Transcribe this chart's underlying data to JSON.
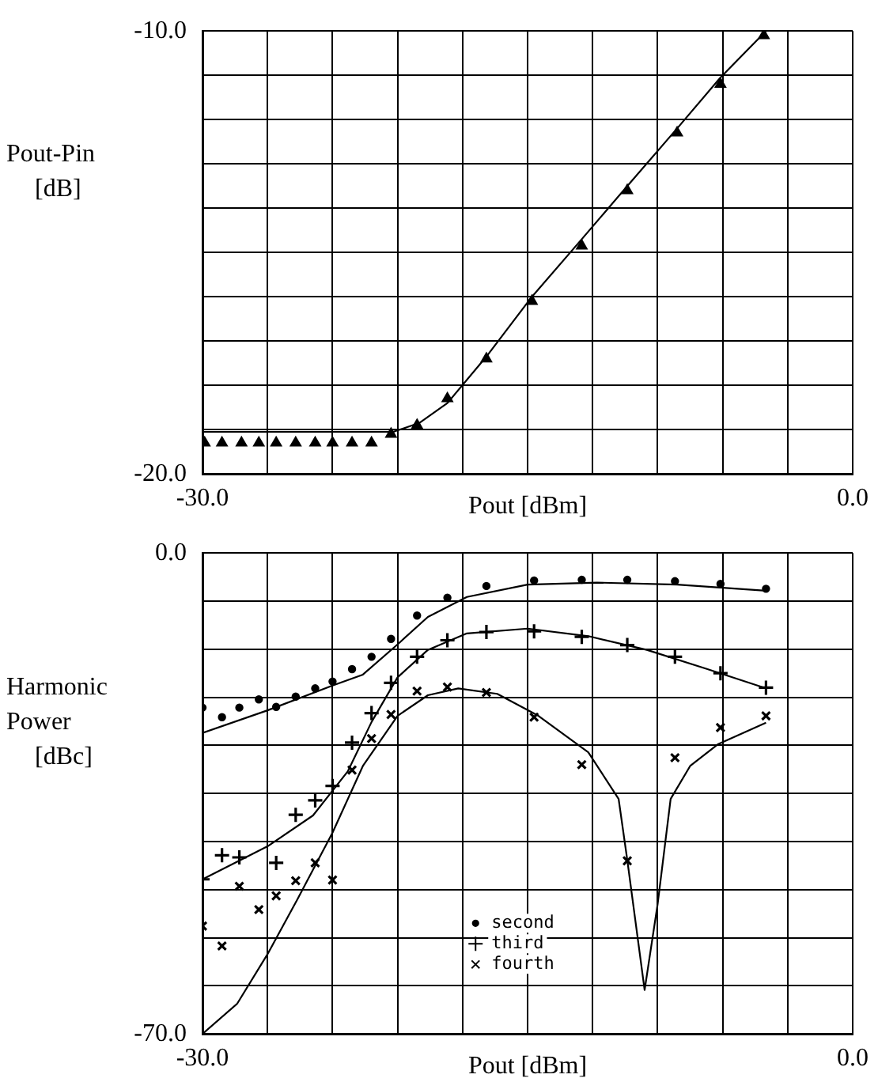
{
  "chart_data": [
    {
      "type": "scatter",
      "ylabel": "Pout-Pin [dB]",
      "xlabel": "Pout [dBm]",
      "xlim": [
        -30,
        0
      ],
      "ylim": [
        -20,
        -10
      ],
      "grid": true,
      "legend": false,
      "xticks": [
        {
          "value": -30,
          "label": "-30.0"
        },
        {
          "value": -27,
          "label": null
        },
        {
          "value": -24,
          "label": null
        },
        {
          "value": -21,
          "label": null
        },
        {
          "value": -18,
          "label": null
        },
        {
          "value": -15,
          "label": null
        },
        {
          "value": -12,
          "label": null
        },
        {
          "value": -9,
          "label": null
        },
        {
          "value": -6,
          "label": null
        },
        {
          "value": -3,
          "label": null
        },
        {
          "value": 0,
          "label": "0.0"
        }
      ],
      "yticks": [
        {
          "value": -20,
          "label": "-20.0"
        },
        {
          "value": -19,
          "label": null
        },
        {
          "value": -18,
          "label": null
        },
        {
          "value": -17,
          "label": null
        },
        {
          "value": -16,
          "label": null
        },
        {
          "value": -15,
          "label": null
        },
        {
          "value": -14,
          "label": null
        },
        {
          "value": -13,
          "label": null
        },
        {
          "value": -12,
          "label": null
        },
        {
          "value": -11,
          "label": null
        },
        {
          "value": -10,
          "label": "-10.0"
        }
      ],
      "series": [
        {
          "type": "scatter",
          "marker": "triangle",
          "color": "#000000",
          "x": [
            -29.9,
            -29.1,
            -28.2,
            -27.4,
            -26.6,
            -25.7,
            -24.8,
            -24.0,
            -23.1,
            -22.2,
            -21.3,
            -20.1,
            -18.7,
            -16.9,
            -14.8,
            -12.5,
            -10.4,
            -8.1,
            -6.1,
            -4.1
          ],
          "values": [
            -19.3,
            -19.3,
            -19.3,
            -19.3,
            -19.3,
            -19.3,
            -19.3,
            -19.3,
            -19.3,
            -19.3,
            -19.1,
            -18.9,
            -18.3,
            -17.4,
            -16.1,
            -14.85,
            -13.6,
            -12.3,
            -11.2,
            -10.1
          ]
        },
        {
          "type": "line",
          "marker": "none",
          "color": "#000000",
          "x": [
            -30,
            -21.2,
            -20,
            -18.7,
            -16.9,
            -14.8,
            -12.5,
            -10.4,
            -8.1,
            -6.1,
            -4.0
          ],
          "values": [
            -19.05,
            -19.05,
            -18.85,
            -18.4,
            -17.35,
            -16.0,
            -14.7,
            -13.5,
            -12.2,
            -11.05,
            -10.0
          ]
        }
      ]
    },
    {
      "type": "scatter",
      "ylabel": "Harmonic Power [dBc]",
      "xlabel": "Pout [dBm]",
      "xlim": [
        -30,
        0
      ],
      "ylim": [
        -70,
        0
      ],
      "grid": true,
      "legend": "bottom",
      "xticks": [
        {
          "value": -30,
          "label": "-30.0"
        },
        {
          "value": -27,
          "label": null
        },
        {
          "value": -24,
          "label": null
        },
        {
          "value": -21,
          "label": null
        },
        {
          "value": -18,
          "label": null
        },
        {
          "value": -15,
          "label": null
        },
        {
          "value": -12,
          "label": null
        },
        {
          "value": -9,
          "label": null
        },
        {
          "value": -6,
          "label": null
        },
        {
          "value": -3,
          "label": null
        },
        {
          "value": 0,
          "label": "0.0"
        }
      ],
      "yticks": [
        {
          "value": -70,
          "label": "-70.0"
        },
        {
          "value": -63,
          "label": null
        },
        {
          "value": -56,
          "label": null
        },
        {
          "value": -49,
          "label": null
        },
        {
          "value": -42,
          "label": null
        },
        {
          "value": -35,
          "label": null
        },
        {
          "value": -28,
          "label": null
        },
        {
          "value": -21,
          "label": null
        },
        {
          "value": -14,
          "label": null
        },
        {
          "value": -7,
          "label": null
        },
        {
          "value": 0,
          "label": "0.0"
        }
      ],
      "series": [
        {
          "type": "scatter",
          "name": "second",
          "marker": "circle",
          "color": "#000000",
          "x": [
            -30.0,
            -29.1,
            -28.3,
            -27.4,
            -26.6,
            -25.7,
            -24.8,
            -24.0,
            -23.1,
            -22.2,
            -21.3,
            -20.1,
            -18.7,
            -16.9,
            -14.7,
            -12.5,
            -10.4,
            -8.2,
            -6.1,
            -4.0
          ],
          "values": [
            -22.5,
            -23.9,
            -22.5,
            -21.3,
            -22.4,
            -20.9,
            -19.7,
            -18.7,
            -16.9,
            -15.1,
            -12.5,
            -9.1,
            -6.5,
            -4.8,
            -4.0,
            -3.9,
            -3.9,
            -4.1,
            -4.5,
            -5.2
          ]
        },
        {
          "type": "scatter",
          "name": "third",
          "marker": "cross",
          "color": "#000000",
          "x": [
            -30.0,
            -29.1,
            -28.3,
            -27.4,
            -26.6,
            -25.7,
            -24.8,
            -24.0,
            -23.1,
            -22.2,
            -21.3,
            -20.1,
            -18.7,
            -16.9,
            -14.7,
            -12.5,
            -10.4,
            -8.2,
            -6.1,
            -4.0
          ],
          "values": [
            -47.5,
            -44.0,
            -44.3,
            null,
            -45.1,
            -38.1,
            -36.0,
            -33.9,
            -27.6,
            -23.3,
            -18.9,
            -15.1,
            -12.7,
            -11.5,
            -11.4,
            -12.2,
            -13.4,
            -15.1,
            -17.5,
            -19.6
          ]
        },
        {
          "type": "scatter",
          "name": "fourth",
          "marker": "x",
          "color": "#000000",
          "x": [
            -30.0,
            -29.1,
            -28.3,
            -27.4,
            -26.6,
            -25.7,
            -24.8,
            -24.0,
            -23.1,
            -22.2,
            -21.3,
            -20.1,
            -18.7,
            -16.9,
            -14.7,
            -12.5,
            -10.4,
            -8.2,
            -6.1,
            -4.0
          ],
          "values": [
            -54.3,
            -57.2,
            -48.5,
            -51.9,
            -49.9,
            -47.7,
            -45.1,
            -47.6,
            -31.6,
            -27.0,
            -23.5,
            -20.1,
            -19.5,
            -20.3,
            -23.9,
            -30.8,
            -44.8,
            -29.8,
            -25.4,
            -23.7
          ]
        },
        {
          "type": "line",
          "marker": "none",
          "color": "#000000",
          "x": [
            -30,
            -27,
            -24,
            -22.6,
            -21,
            -19.6,
            -17.8,
            -15,
            -11.8,
            -8.1,
            -4.0
          ],
          "values": [
            -26.2,
            -22.9,
            -19.3,
            -17.7,
            -13.3,
            -9.3,
            -6.4,
            -4.6,
            -4.3,
            -4.6,
            -5.5
          ]
        },
        {
          "type": "line",
          "marker": "none",
          "color": "#000000",
          "x": [
            -30,
            -27,
            -24.9,
            -23.3,
            -22.2,
            -21,
            -19.6,
            -17.8,
            -15,
            -12.2,
            -9.5,
            -6.7,
            -4
          ],
          "values": [
            -47.5,
            -42.7,
            -38.2,
            -31.8,
            -24.6,
            -18.1,
            -14.1,
            -11.7,
            -11.0,
            -12.1,
            -14.1,
            -16.9,
            -19.7
          ]
        },
        {
          "type": "line",
          "marker": "none",
          "color": "#000000",
          "x": [
            -30,
            -28.4,
            -27,
            -25.6,
            -24,
            -22.6,
            -21,
            -19.6,
            -18.2,
            -16.4,
            -14.5,
            -12.2,
            -10.8,
            -10.4,
            -9.6,
            -9.0,
            -8.4,
            -7.5,
            -6.2,
            -4.0
          ],
          "values": [
            -70.0,
            -65.6,
            -58.4,
            -50.3,
            -40.7,
            -31.0,
            -23.7,
            -20.7,
            -19.7,
            -20.5,
            -23.7,
            -29.0,
            -35.8,
            -44.7,
            -63.6,
            -51.1,
            -35.8,
            -31.0,
            -27.8,
            -24.7
          ]
        }
      ]
    }
  ]
}
